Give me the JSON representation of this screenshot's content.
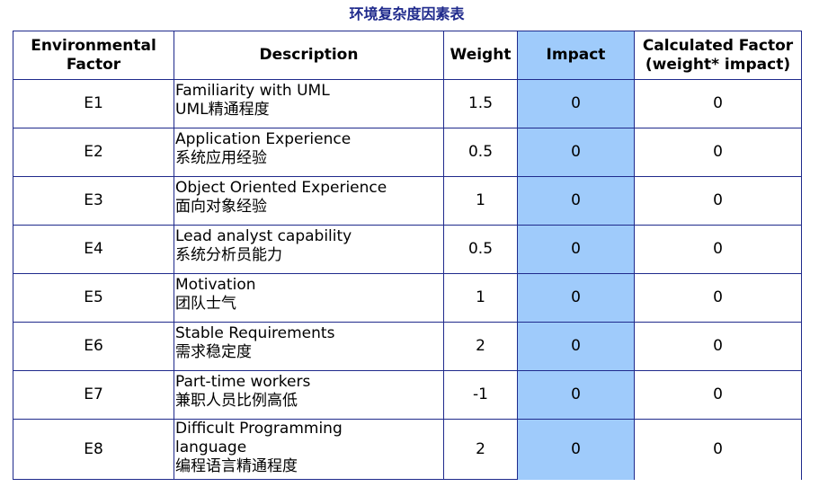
{
  "page": {
    "title": "环境复杂度因素表"
  },
  "table": {
    "headers": {
      "factor": [
        "Environmental",
        "Factor"
      ],
      "description": "Description",
      "weight": "Weight",
      "impact": "Impact",
      "calculated": [
        "Calculated Factor",
        "(weight* impact)"
      ]
    },
    "rows": [
      {
        "factor": "E1",
        "desc_lines": [
          "Familiarity with UML",
          "UML精通程度"
        ],
        "weight": "1.5",
        "impact": "0",
        "calculated": "0"
      },
      {
        "factor": "E2",
        "desc_lines": [
          "Application Experience",
          "系统应用经验"
        ],
        "weight": "0.5",
        "impact": "0",
        "calculated": "0"
      },
      {
        "factor": "E3",
        "desc_lines": [
          "Object Oriented Experience",
          "面向对象经验"
        ],
        "weight": "1",
        "impact": "0",
        "calculated": "0"
      },
      {
        "factor": "E4",
        "desc_lines": [
          "Lead analyst capability",
          "系统分析员能力"
        ],
        "weight": "0.5",
        "impact": "0",
        "calculated": "0"
      },
      {
        "factor": "E5",
        "desc_lines": [
          "Motivation",
          "团队士气"
        ],
        "weight": "1",
        "impact": "0",
        "calculated": "0"
      },
      {
        "factor": "E6",
        "desc_lines": [
          "Stable Requirements",
          "需求稳定度"
        ],
        "weight": "2",
        "impact": "0",
        "calculated": "0"
      },
      {
        "factor": "E7",
        "desc_lines": [
          "Part-time workers",
          "兼职人员比例高低"
        ],
        "weight": "-1",
        "impact": "0",
        "calculated": "0"
      },
      {
        "factor": "E8",
        "desc_lines": [
          "Difficult Programming",
          "language",
          "编程语言精通程度"
        ],
        "weight": "2",
        "impact": "0",
        "calculated": "0"
      }
    ]
  },
  "colors": {
    "border": "#1f2a8c",
    "title": "#1f2a8c",
    "impact_fill": "#9fcbfb"
  }
}
